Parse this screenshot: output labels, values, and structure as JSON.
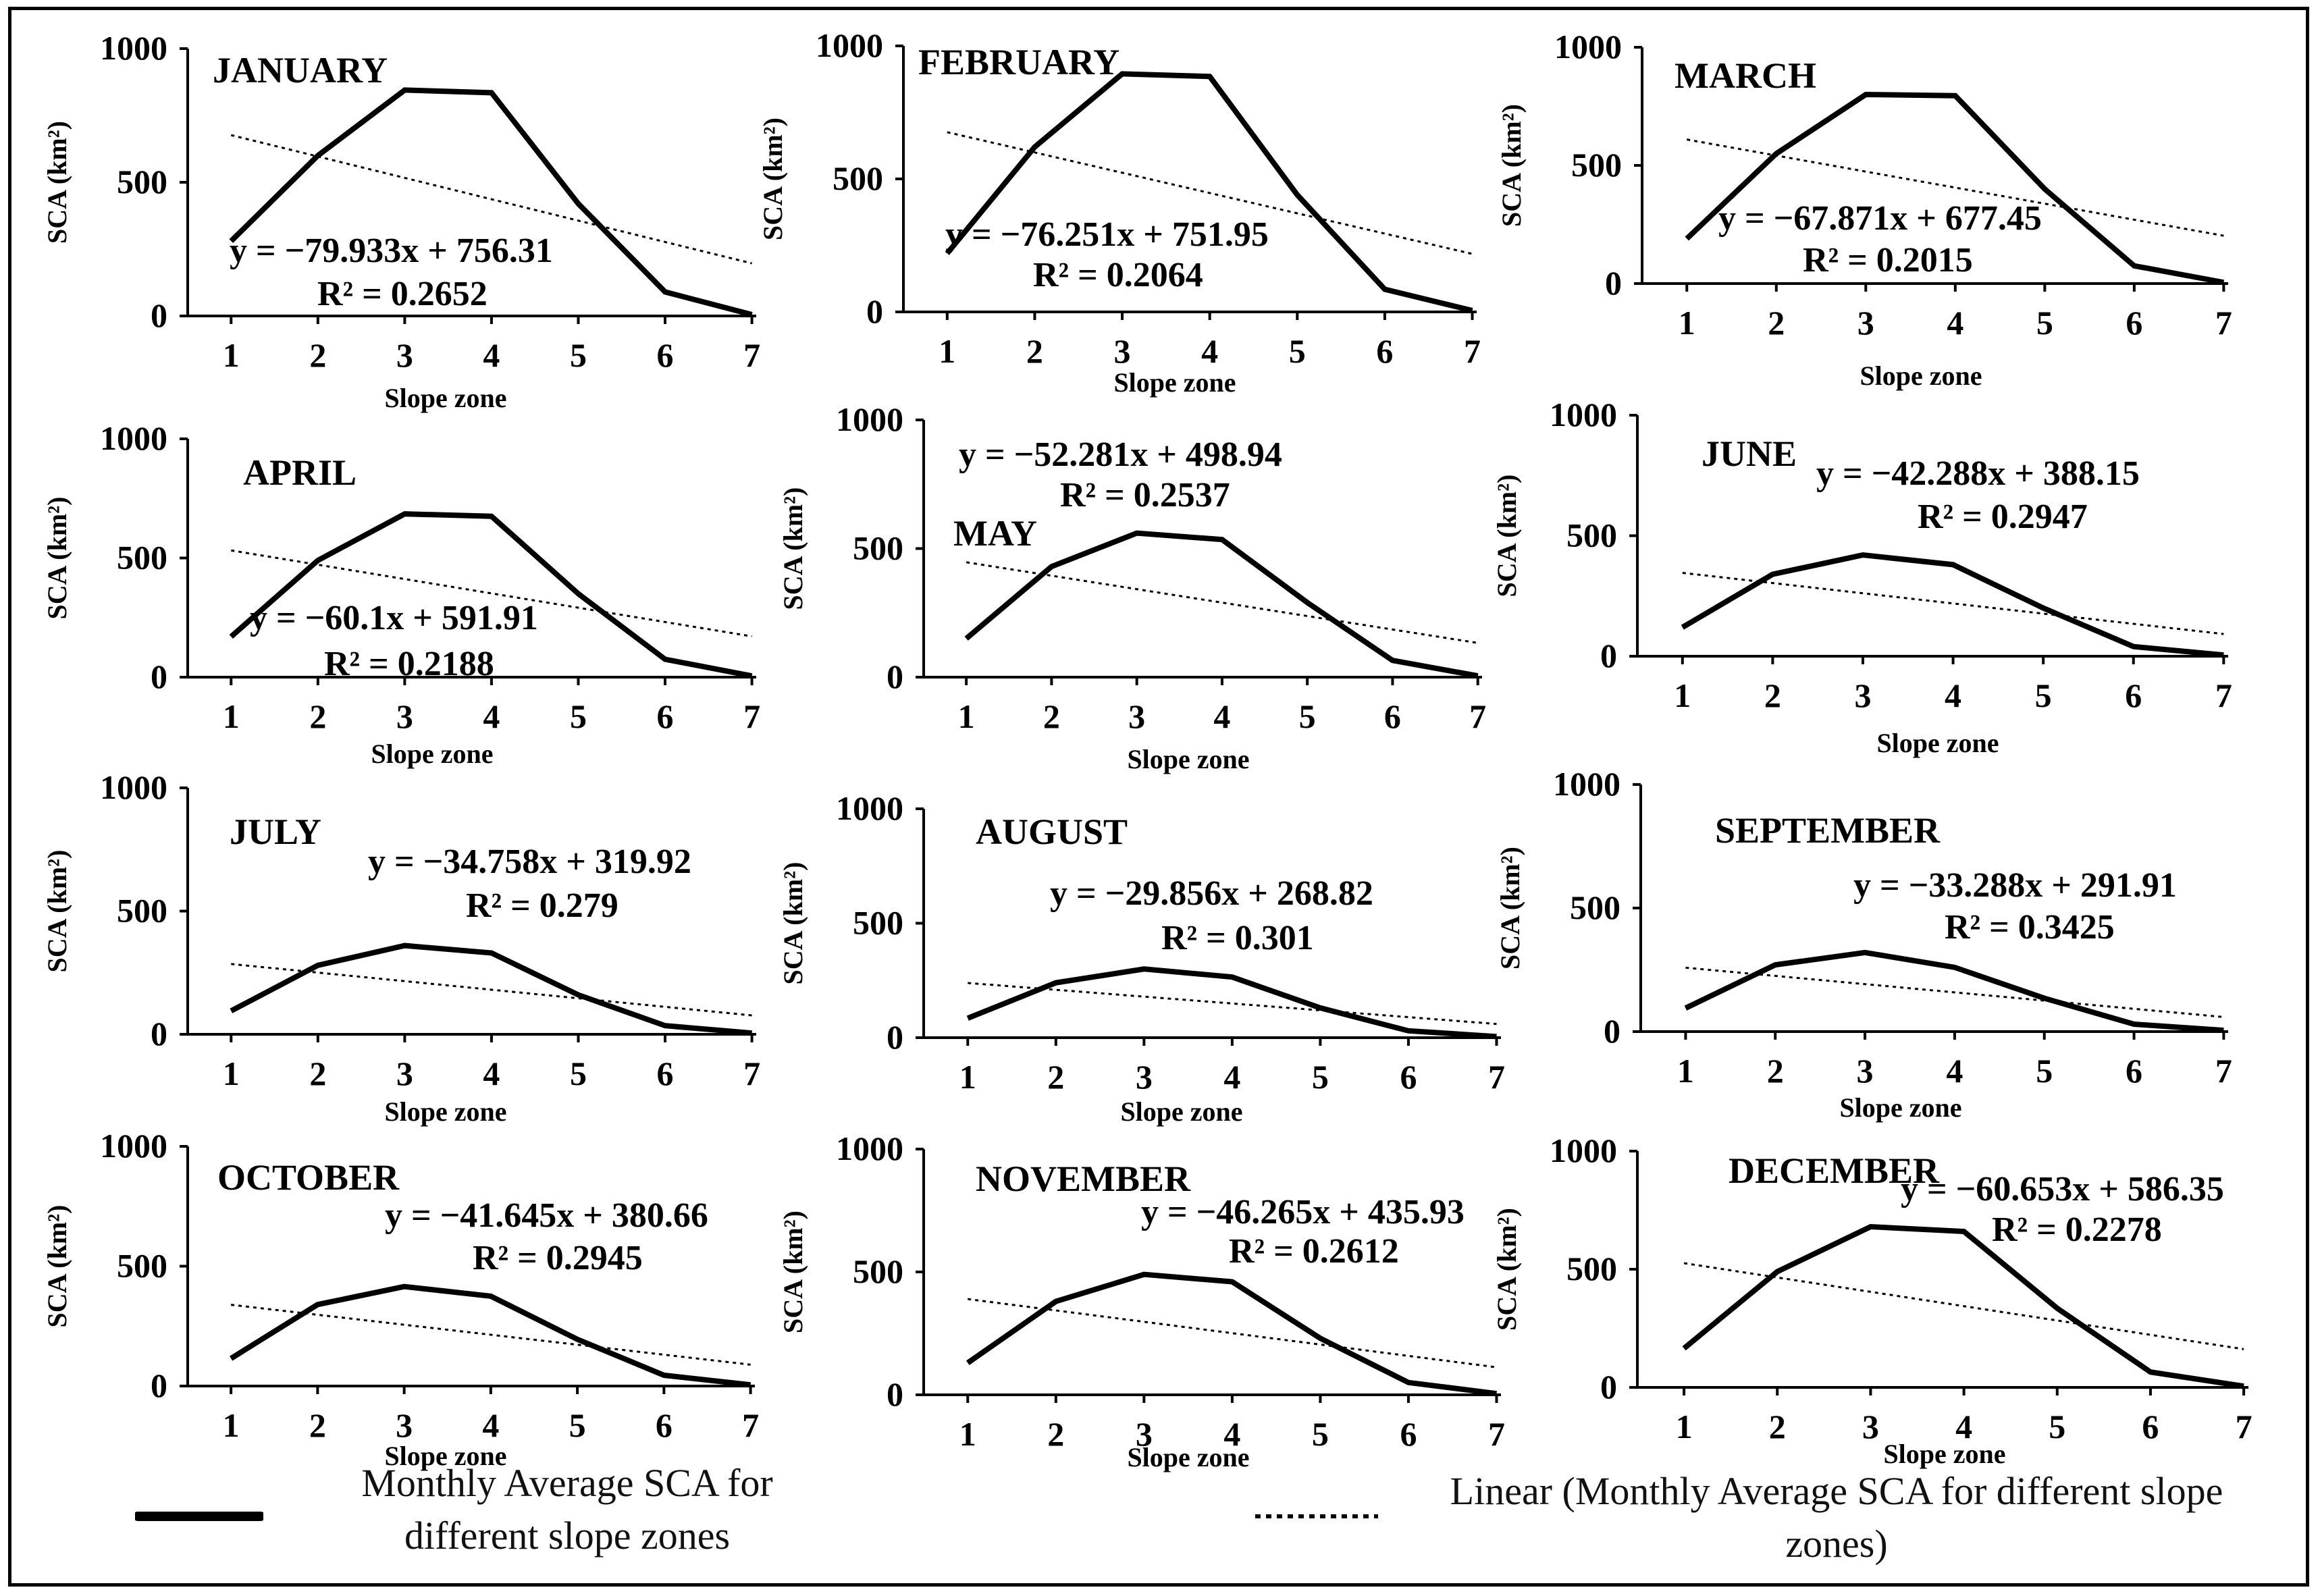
{
  "figure": {
    "axis_label_y": "SCA (km²)",
    "axis_label_x": "Slope zone"
  },
  "legend": {
    "solid_label": "Monthly Average SCA for different slope zones",
    "dotted_label": "Linear (Monthly Average SCA for different slope zones)"
  },
  "chart_data": [
    {
      "type": "line",
      "title": "JANUARY",
      "xlabel": "Slope zone",
      "ylabel": "SCA (km²)",
      "categories": [
        1,
        2,
        3,
        4,
        5,
        6,
        7
      ],
      "ylim": [
        0,
        1000
      ],
      "yticks": [
        0,
        500,
        1000
      ],
      "series": [
        {
          "name": "Monthly Average SCA for different slope zones",
          "values": [
            280,
            600,
            845,
            835,
            420,
            90,
            5
          ]
        }
      ],
      "trendline": {
        "slope": -79.933,
        "intercept": 756.31,
        "equation": "y = −79.933x + 756.31",
        "r2": "R² = 0.2652"
      }
    },
    {
      "type": "line",
      "title": "FEBRUARY",
      "xlabel": "Slope zone",
      "ylabel": "SCA (km²)",
      "categories": [
        1,
        2,
        3,
        4,
        5,
        6,
        7
      ],
      "ylim": [
        0,
        1000
      ],
      "yticks": [
        0,
        500,
        1000
      ],
      "series": [
        {
          "name": "Monthly Average SCA for different slope zones",
          "values": [
            220,
            620,
            895,
            885,
            440,
            85,
            5
          ]
        }
      ],
      "trendline": {
        "slope": -76.251,
        "intercept": 751.95,
        "equation": "y = −76.251x + 751.95",
        "r2": "R² = 0.2064"
      }
    },
    {
      "type": "line",
      "title": "MARCH",
      "xlabel": "Slope zone",
      "ylabel": "SCA (km²)",
      "categories": [
        1,
        2,
        3,
        4,
        5,
        6,
        7
      ],
      "ylim": [
        0,
        1000
      ],
      "yticks": [
        0,
        500,
        1000
      ],
      "series": [
        {
          "name": "Monthly Average SCA for different slope zones",
          "values": [
            190,
            550,
            800,
            795,
            400,
            75,
            5
          ]
        }
      ],
      "trendline": {
        "slope": -67.871,
        "intercept": 677.45,
        "equation": "y = −67.871x + 677.45",
        "r2": "R² = 0.2015"
      }
    },
    {
      "type": "line",
      "title": "APRIL",
      "xlabel": "Slope zone",
      "ylabel": "SCA (km²)",
      "categories": [
        1,
        2,
        3,
        4,
        5,
        6,
        7
      ],
      "ylim": [
        0,
        1000
      ],
      "yticks": [
        0,
        500,
        1000
      ],
      "series": [
        {
          "name": "Monthly Average SCA for different slope zones",
          "values": [
            170,
            490,
            685,
            675,
            350,
            75,
            5
          ]
        }
      ],
      "trendline": {
        "slope": -60.1,
        "intercept": 591.91,
        "equation": "y =  −60.1x + 591.91",
        "r2": "R² = 0.2188"
      }
    },
    {
      "type": "line",
      "title": "MAY",
      "xlabel": "Slope zone",
      "ylabel": "SCA (km²)",
      "categories": [
        1,
        2,
        3,
        4,
        5,
        6,
        7
      ],
      "ylim": [
        0,
        1000
      ],
      "yticks": [
        0,
        500,
        1000
      ],
      "series": [
        {
          "name": "Monthly Average SCA for different slope zones",
          "values": [
            150,
            430,
            560,
            535,
            290,
            65,
            5
          ]
        }
      ],
      "trendline": {
        "slope": -52.281,
        "intercept": 498.94,
        "equation": "y =  −52.281x + 498.94",
        "r2": "R² = 0.2537"
      }
    },
    {
      "type": "line",
      "title": "JUNE",
      "xlabel": "Slope zone",
      "ylabel": "SCA (km²)",
      "categories": [
        1,
        2,
        3,
        4,
        5,
        6,
        7
      ],
      "ylim": [
        0,
        1000
      ],
      "yticks": [
        0,
        500,
        1000
      ],
      "series": [
        {
          "name": "Monthly Average SCA for different slope zones",
          "values": [
            120,
            340,
            420,
            380,
            200,
            40,
            5
          ]
        }
      ],
      "trendline": {
        "slope": -42.288,
        "intercept": 388.15,
        "equation": "y =  −42.288x + 388.15",
        "r2": "R² = 0.2947"
      }
    },
    {
      "type": "line",
      "title": "JULY",
      "xlabel": "Slope zone",
      "ylabel": "SCA (km²)",
      "categories": [
        1,
        2,
        3,
        4,
        5,
        6,
        7
      ],
      "ylim": [
        0,
        1000
      ],
      "yticks": [
        0,
        500,
        1000
      ],
      "series": [
        {
          "name": "Monthly Average SCA for different slope zones",
          "values": [
            95,
            280,
            360,
            330,
            160,
            35,
            5
          ]
        }
      ],
      "trendline": {
        "slope": -34.758,
        "intercept": 319.92,
        "equation": "y =  −34.758x + 319.92",
        "r2": "R² = 0.279"
      }
    },
    {
      "type": "line",
      "title": "AUGUST",
      "xlabel": "Slope zone",
      "ylabel": "SCA (km²)",
      "categories": [
        1,
        2,
        3,
        4,
        5,
        6,
        7
      ],
      "ylim": [
        0,
        1000
      ],
      "yticks": [
        0,
        500,
        1000
      ],
      "series": [
        {
          "name": "Monthly Average SCA for different slope zones",
          "values": [
            85,
            240,
            300,
            265,
            130,
            30,
            5
          ]
        }
      ],
      "trendline": {
        "slope": -29.856,
        "intercept": 268.82,
        "equation": "y =  −29.856x + 268.82",
        "r2": "R² = 0.301"
      }
    },
    {
      "type": "line",
      "title": "SEPTEMBER",
      "xlabel": "Slope zone",
      "ylabel": "SCA (km²)",
      "categories": [
        1,
        2,
        3,
        4,
        5,
        6,
        7
      ],
      "ylim": [
        0,
        1000
      ],
      "yticks": [
        0,
        500,
        1000
      ],
      "series": [
        {
          "name": "Monthly Average SCA for different slope zones",
          "values": [
            95,
            270,
            320,
            260,
            135,
            30,
            5
          ]
        }
      ],
      "trendline": {
        "slope": -33.288,
        "intercept": 291.91,
        "equation": "y =  −33.288x + 291.91",
        "r2": "R² = 0.3425"
      }
    },
    {
      "type": "line",
      "title": "OCTOBER",
      "xlabel": "Slope zone",
      "ylabel": "SCA (km²)",
      "categories": [
        1,
        2,
        3,
        4,
        5,
        6,
        7
      ],
      "ylim": [
        0,
        1000
      ],
      "yticks": [
        0,
        500,
        1000
      ],
      "series": [
        {
          "name": "Monthly Average SCA for different slope zones",
          "values": [
            115,
            340,
            415,
            375,
            195,
            45,
            5
          ]
        }
      ],
      "trendline": {
        "slope": -41.645,
        "intercept": 380.66,
        "equation": "y =  −41.645x + 380.66",
        "r2": "R² = 0.2945"
      }
    },
    {
      "type": "line",
      "title": "NOVEMBER",
      "xlabel": "Slope zone",
      "ylabel": "SCA (km²)",
      "categories": [
        1,
        2,
        3,
        4,
        5,
        6,
        7
      ],
      "ylim": [
        0,
        1000
      ],
      "yticks": [
        0,
        500,
        1000
      ],
      "series": [
        {
          "name": "Monthly Average SCA for different slope zones",
          "values": [
            130,
            380,
            490,
            460,
            230,
            50,
            5
          ]
        }
      ],
      "trendline": {
        "slope": -46.265,
        "intercept": 435.93,
        "equation": "y =  −46.265x + 435.93",
        "r2": "R² = 0.2612"
      }
    },
    {
      "type": "line",
      "title": "DECEMBER",
      "xlabel": "Slope zone",
      "ylabel": "SCA (km²)",
      "categories": [
        1,
        2,
        3,
        4,
        5,
        6,
        7
      ],
      "ylim": [
        0,
        1000
      ],
      "yticks": [
        0,
        500,
        1000
      ],
      "series": [
        {
          "name": "Monthly Average SCA for different slope zones",
          "values": [
            165,
            490,
            680,
            660,
            335,
            65,
            5
          ]
        }
      ],
      "trendline": {
        "slope": -60.653,
        "intercept": 586.35,
        "equation": "y =  −60.653x + 586.35",
        "r2": "R² = 0.2278"
      }
    }
  ]
}
